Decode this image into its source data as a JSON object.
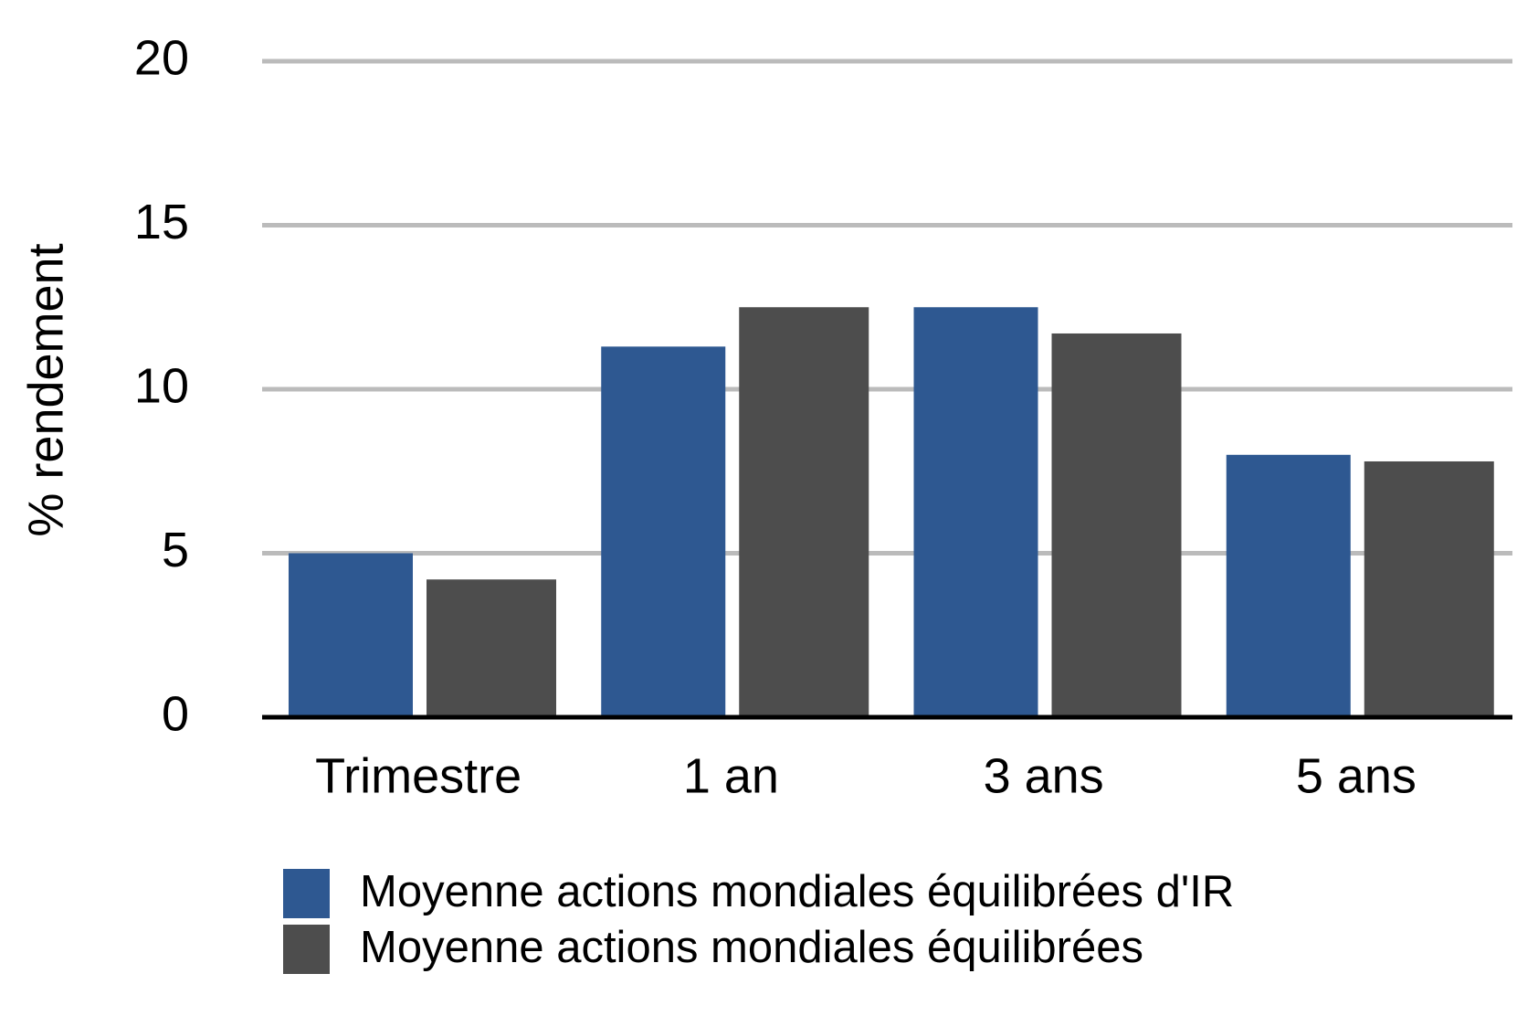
{
  "chart_data": {
    "type": "bar",
    "y_label": "% rendement",
    "categories": [
      "Trimestre",
      "1 an",
      "3 ans",
      "5 ans"
    ],
    "series": [
      {
        "name": "Moyenne actions mondiales équilibrées d'IR",
        "color": "#2e5891",
        "values": [
          5.0,
          11.3,
          12.5,
          8.0
        ]
      },
      {
        "name": "Moyenne actions mondiales équilibrées",
        "color": "#4d4d4d",
        "values": [
          4.2,
          12.5,
          11.7,
          7.8
        ]
      }
    ],
    "ylim": [
      0,
      20
    ],
    "yticks": [
      0,
      5,
      10,
      15,
      20
    ],
    "grid": true
  }
}
